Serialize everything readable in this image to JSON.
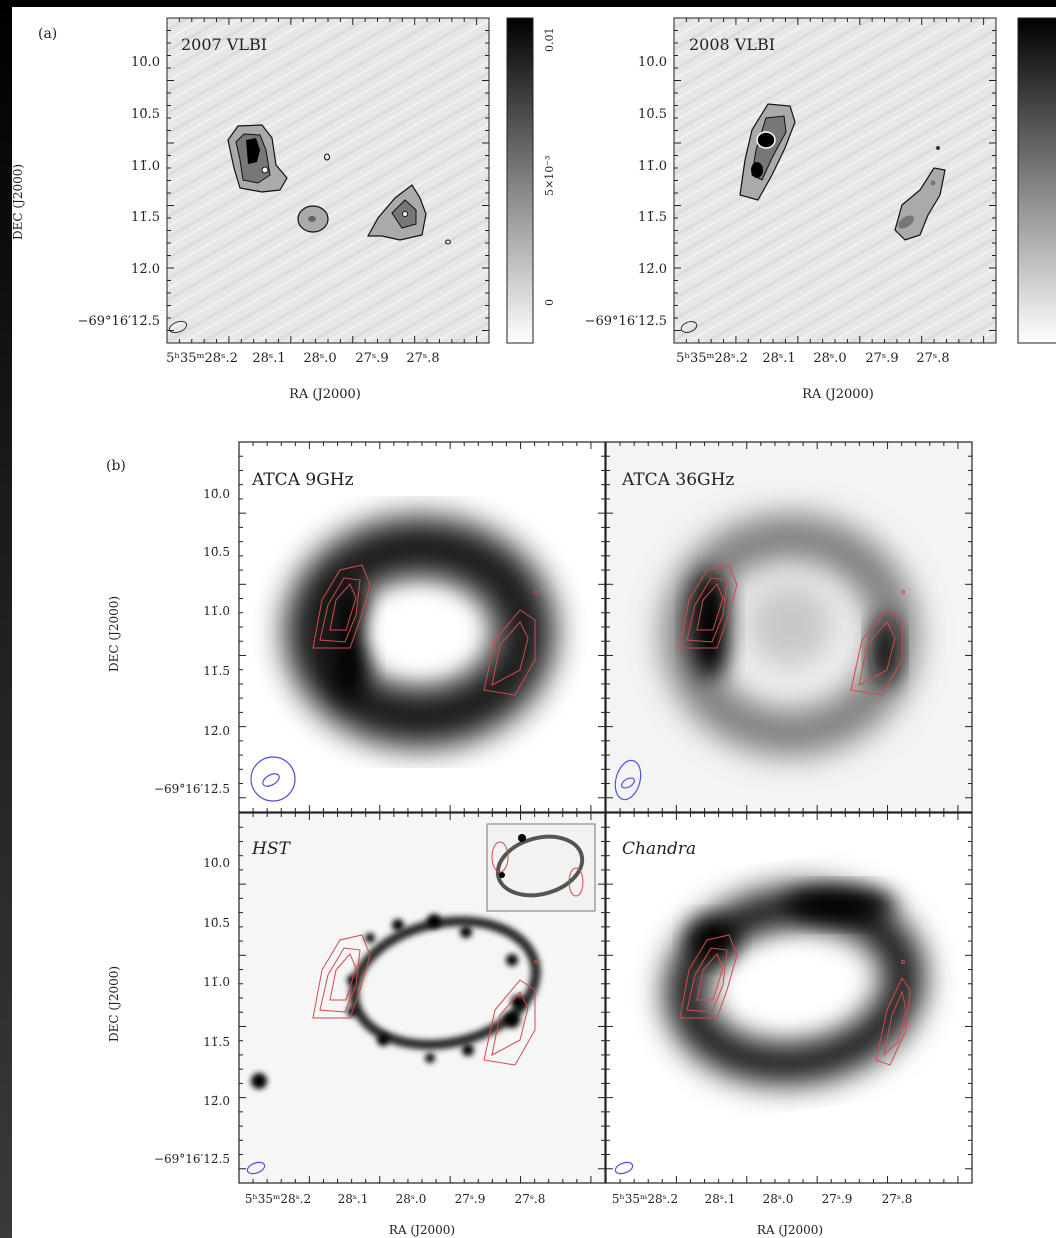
{
  "panel_a": {
    "tag": "(a)",
    "dec_axis_label": "DEC (J2000)",
    "ra_axis_label": "RA (J2000)",
    "dec_ticks": [
      "10̈.0",
      "10̈.5",
      "11̈.0",
      "11̈.5",
      "12̈.0",
      "−69°16′12̈.5"
    ],
    "ra_ticks": [
      "5ʰ35ᵐ28ˢ.2",
      "28ˢ.1",
      "28ˢ.0",
      "27ˢ.9",
      "27ˢ.8"
    ],
    "maps": [
      {
        "title": "2007 VLBI",
        "colorbar_ticks": [
          "0.01",
          "5×10⁻³",
          "0"
        ]
      },
      {
        "title": "2008 VLBI",
        "colorbar_ticks": []
      }
    ]
  },
  "panel_b": {
    "tag": "(b)",
    "dec_axis_label": "DEC (J2000)",
    "ra_axis_label": "RA (J2000)",
    "dec_ticks": [
      "10̈.0",
      "10̈.5",
      "11̈.0",
      "11̈.5",
      "12̈.0",
      "−69°16′12̈.5"
    ],
    "ra_ticks": [
      "5ʰ35ᵐ28ˢ.2",
      "28ˢ.1",
      "28ˢ.0",
      "27ˢ.9",
      "27ˢ.8"
    ],
    "maps": [
      {
        "title": "ATCA 9GHz"
      },
      {
        "title": "ATCA 36GHz"
      },
      {
        "title": "HST"
      },
      {
        "title": "Chandra"
      }
    ]
  },
  "colors": {
    "contour_red": "#d24a4a",
    "beam_blue": "#4a55d8",
    "vlbi_contour": "#111111",
    "frame": "#222222"
  }
}
